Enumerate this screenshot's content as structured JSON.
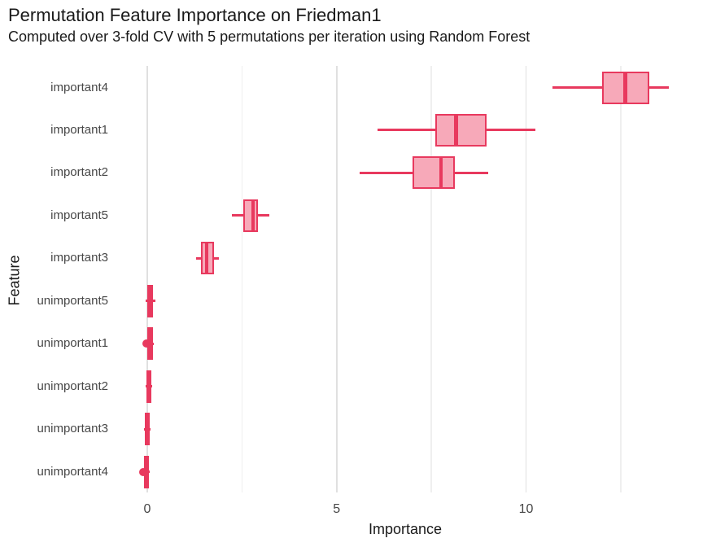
{
  "title": "Permutation Feature Importance on Friedman1",
  "subtitle": "Computed over 3-fold CV with 5 permutations per iteration using Random Forest",
  "chart_data": {
    "type": "boxplot",
    "orientation": "horizontal",
    "title": "Permutation Feature Importance on Friedman1",
    "subtitle": "Computed over 3-fold CV with 5 permutations per iteration using Random Forest",
    "xlabel": "Importance",
    "ylabel": "Feature",
    "xlim": [
      -0.88,
      14.5
    ],
    "x_major_ticks": [
      0,
      5,
      10
    ],
    "x_tick_labels": [
      "0",
      "5",
      "10"
    ],
    "x_minor_gridlines": [
      2.5,
      7.5,
      12.5
    ],
    "grid": "vertical-only",
    "legend": "none",
    "colors": {
      "box_line": "#E8395E",
      "box_fill": "#F7A9B9",
      "grid_major": "#E0E0E0",
      "grid_minor": "#EFEFEF",
      "tick_label": "#474747",
      "text": "#1A1A1A",
      "background": "#FFFFFF"
    },
    "rows": [
      {
        "label": "important4",
        "whisker_low": 10.7,
        "q1": 12.0,
        "median": 12.62,
        "q3": 13.25,
        "whisker_high": 13.77,
        "outliers": []
      },
      {
        "label": "important1",
        "whisker_low": 6.08,
        "q1": 7.6,
        "median": 8.15,
        "q3": 8.95,
        "whisker_high": 10.25,
        "outliers": []
      },
      {
        "label": "important2",
        "whisker_low": 5.6,
        "q1": 7.0,
        "median": 7.75,
        "q3": 8.13,
        "whisker_high": 9.0,
        "outliers": []
      },
      {
        "label": "important5",
        "whisker_low": 2.24,
        "q1": 2.54,
        "median": 2.79,
        "q3": 2.92,
        "whisker_high": 3.22,
        "outliers": []
      },
      {
        "label": "important3",
        "whisker_low": 1.29,
        "q1": 1.41,
        "median": 1.57,
        "q3": 1.77,
        "whisker_high": 1.88,
        "outliers": []
      },
      {
        "label": "unimportant5",
        "whisker_low": -0.04,
        "q1": 0.01,
        "median": 0.08,
        "q3": 0.15,
        "whisker_high": 0.22,
        "outliers": []
      },
      {
        "label": "unimportant1",
        "whisker_low": -0.01,
        "q1": 0.01,
        "median": 0.05,
        "q3": 0.14,
        "whisker_high": 0.17,
        "outliers": [
          -0.03
        ]
      },
      {
        "label": "unimportant2",
        "whisker_low": -0.05,
        "q1": -0.03,
        "median": 0.03,
        "q3": 0.1,
        "whisker_high": 0.12,
        "outliers": []
      },
      {
        "label": "unimportant3",
        "whisker_low": -0.09,
        "q1": -0.06,
        "median": 0.0,
        "q3": 0.07,
        "whisker_high": 0.08,
        "outliers": []
      },
      {
        "label": "unimportant4",
        "whisker_low": -0.11,
        "q1": -0.09,
        "median": -0.02,
        "q3": 0.04,
        "whisker_high": 0.06,
        "outliers": [
          -0.1
        ]
      }
    ]
  }
}
